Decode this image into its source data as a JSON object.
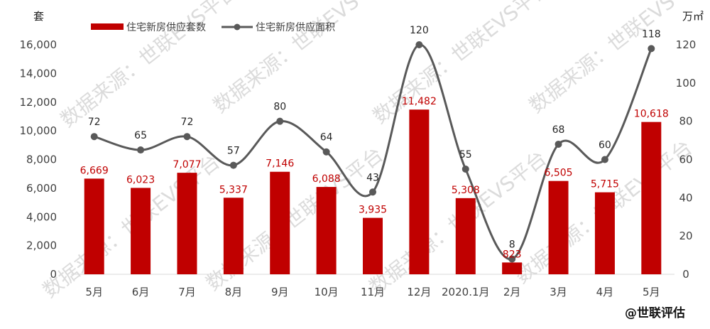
{
  "chart_data": {
    "type": "bar",
    "categories": [
      "5月",
      "6月",
      "7月",
      "8月",
      "9月",
      "10月",
      "11月",
      "12月",
      "2020.1月",
      "2月",
      "3月",
      "4月",
      "5月"
    ],
    "series": [
      {
        "name": "住宅新房供应套数",
        "type": "bar",
        "axis": "left",
        "values": [
          6669,
          6023,
          7077,
          5337,
          7146,
          6088,
          3935,
          11482,
          5308,
          823,
          6505,
          5715,
          10618
        ],
        "labels": [
          "6,669",
          "6,023",
          "7,077",
          "5,337",
          "7,146",
          "6,088",
          "3,935",
          "11,482",
          "5,308",
          "823",
          "6,505",
          "5,715",
          "10,618"
        ],
        "color": "#c00000"
      },
      {
        "name": "住宅新房供应面积",
        "type": "line",
        "axis": "right",
        "values": [
          72,
          65,
          72,
          57,
          80,
          64,
          43,
          120,
          55,
          8,
          68,
          60,
          118
        ],
        "labels": [
          "72",
          "65",
          "72",
          "57",
          "80",
          "64",
          "43",
          "120",
          "55",
          "8",
          "68",
          "60",
          "118"
        ],
        "color": "#595959"
      }
    ],
    "y_left": {
      "unit": "套",
      "ylim": [
        0,
        16000
      ],
      "ticks": [
        0,
        2000,
        4000,
        6000,
        8000,
        10000,
        12000,
        14000,
        16000
      ],
      "tick_labels": [
        "0",
        "2,000",
        "4,000",
        "6,000",
        "8,000",
        "10,000",
        "12,000",
        "14,000",
        "16,000"
      ]
    },
    "y_right": {
      "unit": "万㎡",
      "ylim": [
        0,
        120
      ],
      "ticks": [
        0,
        20,
        40,
        60,
        80,
        100,
        120
      ],
      "tick_labels": [
        "0",
        "20",
        "40",
        "60",
        "80",
        "100",
        "120"
      ]
    },
    "legend_position": "top-left",
    "grid": false
  },
  "watermark": "数据来源：世联EVS平台",
  "credit": "@世联评估"
}
